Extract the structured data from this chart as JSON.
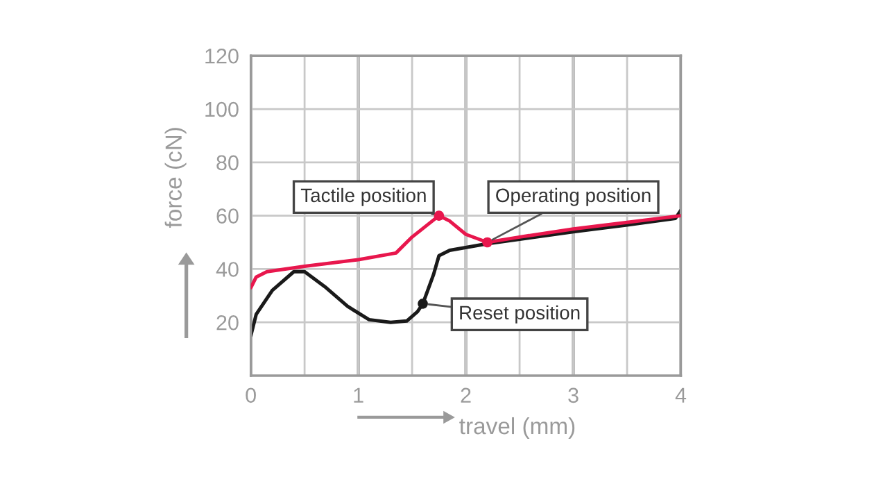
{
  "chart_data": {
    "type": "line",
    "xlabel": "travel (mm)",
    "ylabel": "force (cN)",
    "xlim": [
      0,
      4
    ],
    "ylim": [
      0,
      120
    ],
    "xticks": [
      0,
      {
        "value": 0.5,
        "label": null
      },
      1,
      {
        "value": 1.5,
        "label": null
      },
      2,
      {
        "value": 2.5,
        "label": null
      },
      3,
      {
        "value": 3.5,
        "label": null
      },
      4
    ],
    "yticks": [
      {
        "value": 0,
        "label": null
      },
      20,
      40,
      60,
      80,
      100,
      120
    ],
    "grid": true,
    "series": [
      {
        "color": "#1a1a1a",
        "x": [
          0,
          0.05,
          0.2,
          0.4,
          0.5,
          0.7,
          0.9,
          1.1,
          1.3,
          1.45,
          1.55,
          1.6,
          1.7,
          1.75,
          1.85,
          2.2,
          3,
          3.5,
          3.95,
          4
        ],
        "values": [
          15,
          23,
          32,
          39,
          39,
          33,
          26,
          21,
          20,
          20.5,
          24,
          27,
          38,
          45,
          47,
          49.5,
          54,
          56.5,
          59,
          62
        ]
      },
      {
        "color": "#e8174d",
        "x": [
          0,
          0.05,
          0.15,
          0.5,
          1,
          1.35,
          1.5,
          1.75,
          1.85,
          2,
          2.2,
          2.5,
          3,
          3.5,
          4
        ],
        "values": [
          33,
          37,
          39,
          41,
          43.5,
          46,
          52,
          60,
          58,
          53,
          50,
          52,
          55,
          57.5,
          60
        ]
      },
      {
        "type": "scatter",
        "color": "#e8174d",
        "x": [
          1.75,
          2.2
        ],
        "values": [
          60,
          50
        ]
      },
      {
        "type": "scatter",
        "color": "#1a1a1a",
        "x": [
          1.6
        ],
        "values": [
          27
        ]
      }
    ],
    "annotations": [
      {
        "text": "Tactile position",
        "x": 1.75,
        "y": 60
      },
      {
        "text": "Operating position",
        "x": 2.2,
        "y": 50
      },
      {
        "text": "Reset position",
        "x": 1.6,
        "y": 27
      }
    ]
  }
}
